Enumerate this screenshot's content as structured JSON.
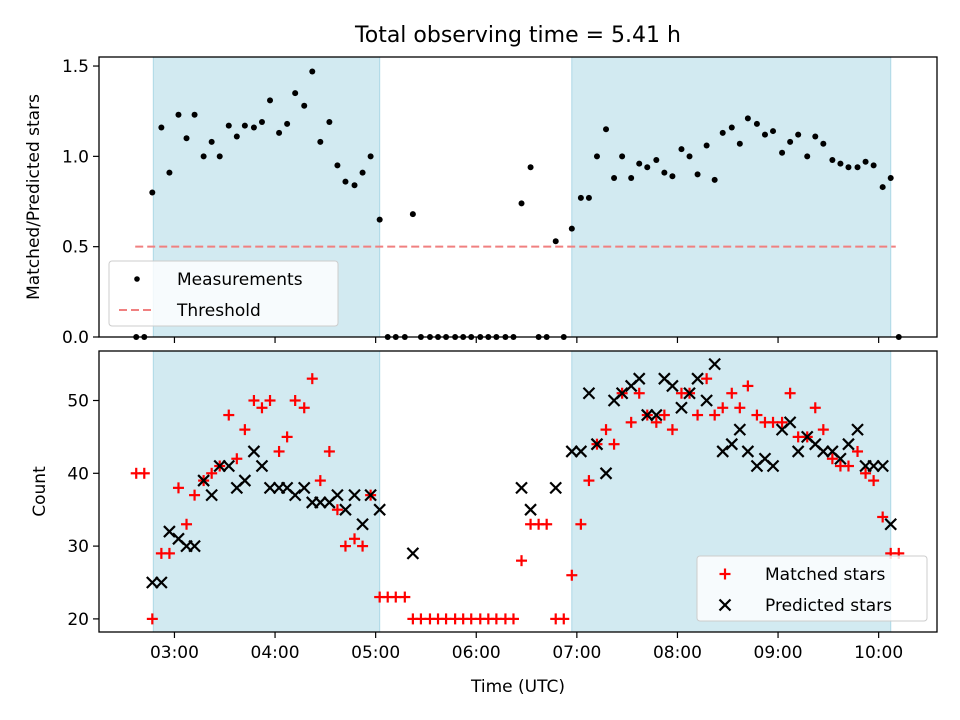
{
  "title": "Total observing time = 5.41 h",
  "chart_data": [
    {
      "type": "scatter",
      "panel": "top",
      "ylabel": "Matched/Predicted stars",
      "xlabel": "",
      "ylim": [
        0,
        1.55
      ],
      "yticks": [
        0.0,
        0.5,
        1.0,
        1.5
      ],
      "ytick_labels": [
        "0.0",
        "0.5",
        "1.0",
        "1.5"
      ],
      "legend": {
        "placement": "lower-left",
        "entries": [
          "Measurements",
          "Threshold"
        ]
      },
      "threshold": {
        "name": "Threshold",
        "value": 0.5,
        "x_start": 2.61,
        "x_end": 10.17,
        "color": "#f08080"
      },
      "series": [
        {
          "name": "Measurements",
          "color": "#000000",
          "points": [
            [
              2.62,
              0.0
            ],
            [
              2.7,
              0.0
            ],
            [
              2.78,
              0.8
            ],
            [
              2.87,
              1.16
            ],
            [
              2.95,
              0.91
            ],
            [
              3.04,
              1.23
            ],
            [
              3.12,
              1.1
            ],
            [
              3.2,
              1.23
            ],
            [
              3.29,
              1.0
            ],
            [
              3.37,
              1.08
            ],
            [
              3.45,
              1.0
            ],
            [
              3.54,
              1.17
            ],
            [
              3.62,
              1.11
            ],
            [
              3.7,
              1.17
            ],
            [
              3.79,
              1.16
            ],
            [
              3.87,
              1.19
            ],
            [
              3.95,
              1.31
            ],
            [
              4.04,
              1.13
            ],
            [
              4.12,
              1.18
            ],
            [
              4.2,
              1.35
            ],
            [
              4.29,
              1.28
            ],
            [
              4.37,
              1.47
            ],
            [
              4.45,
              1.08
            ],
            [
              4.54,
              1.19
            ],
            [
              4.62,
              0.95
            ],
            [
              4.7,
              0.86
            ],
            [
              4.79,
              0.84
            ],
            [
              4.87,
              0.91
            ],
            [
              4.95,
              1.0
            ],
            [
              5.04,
              0.65
            ],
            [
              5.12,
              0.0
            ],
            [
              5.2,
              0.0
            ],
            [
              5.29,
              0.0
            ],
            [
              5.37,
              0.68
            ],
            [
              5.45,
              0.0
            ],
            [
              5.54,
              0.0
            ],
            [
              5.62,
              0.0
            ],
            [
              5.7,
              0.0
            ],
            [
              5.79,
              0.0
            ],
            [
              5.87,
              0.0
            ],
            [
              5.95,
              0.0
            ],
            [
              6.04,
              0.0
            ],
            [
              6.12,
              0.0
            ],
            [
              6.2,
              0.0
            ],
            [
              6.29,
              0.0
            ],
            [
              6.37,
              0.0
            ],
            [
              6.45,
              0.74
            ],
            [
              6.54,
              0.94
            ],
            [
              6.62,
              0.0
            ],
            [
              6.7,
              0.0
            ],
            [
              6.79,
              0.53
            ],
            [
              6.87,
              0.0
            ],
            [
              6.95,
              0.6
            ],
            [
              7.04,
              0.77
            ],
            [
              7.12,
              0.77
            ],
            [
              7.2,
              1.0
            ],
            [
              7.29,
              1.15
            ],
            [
              7.37,
              0.88
            ],
            [
              7.45,
              1.0
            ],
            [
              7.54,
              0.88
            ],
            [
              7.62,
              0.96
            ],
            [
              7.7,
              0.94
            ],
            [
              7.79,
              0.98
            ],
            [
              7.87,
              0.91
            ],
            [
              7.95,
              0.89
            ],
            [
              8.04,
              1.04
            ],
            [
              8.12,
              1.0
            ],
            [
              8.2,
              0.9
            ],
            [
              8.29,
              1.06
            ],
            [
              8.37,
              0.87
            ],
            [
              8.45,
              1.13
            ],
            [
              8.54,
              1.16
            ],
            [
              8.62,
              1.07
            ],
            [
              8.7,
              1.21
            ],
            [
              8.79,
              1.18
            ],
            [
              8.87,
              1.12
            ],
            [
              8.95,
              1.14
            ],
            [
              9.04,
              1.02
            ],
            [
              9.12,
              1.08
            ],
            [
              9.2,
              1.12
            ],
            [
              9.29,
              1.0
            ],
            [
              9.37,
              1.11
            ],
            [
              9.45,
              1.07
            ],
            [
              9.54,
              0.98
            ],
            [
              9.62,
              0.96
            ],
            [
              9.7,
              0.94
            ],
            [
              9.79,
              0.94
            ],
            [
              9.87,
              0.97
            ],
            [
              9.95,
              0.95
            ],
            [
              10.04,
              0.83
            ],
            [
              10.12,
              0.88
            ],
            [
              10.2,
              0.0
            ]
          ]
        }
      ]
    },
    {
      "type": "scatter",
      "panel": "bottom",
      "ylabel": "Count",
      "xlabel": "Time (UTC)",
      "ylim": [
        18.2,
        56.8
      ],
      "yticks": [
        20,
        30,
        40,
        50
      ],
      "ytick_labels": [
        "20",
        "30",
        "40",
        "50"
      ],
      "xlim": [
        2.25,
        10.58
      ],
      "xticks": [
        3,
        4,
        5,
        6,
        7,
        8,
        9,
        10
      ],
      "xtick_labels": [
        "03:00",
        "04:00",
        "05:00",
        "06:00",
        "07:00",
        "08:00",
        "09:00",
        "10:00"
      ],
      "legend": {
        "placement": "lower-right",
        "entries": [
          "Matched stars",
          "Predicted stars"
        ]
      },
      "series": [
        {
          "name": "Matched stars",
          "marker": "plus",
          "color": "#ff0000",
          "points": [
            [
              2.62,
              40
            ],
            [
              2.7,
              40
            ],
            [
              2.78,
              20
            ],
            [
              2.87,
              29
            ],
            [
              2.95,
              29
            ],
            [
              3.04,
              38
            ],
            [
              3.12,
              33
            ],
            [
              3.2,
              37
            ],
            [
              3.29,
              39
            ],
            [
              3.37,
              40
            ],
            [
              3.45,
              41
            ],
            [
              3.54,
              48
            ],
            [
              3.62,
              42
            ],
            [
              3.7,
              46
            ],
            [
              3.79,
              50
            ],
            [
              3.87,
              49
            ],
            [
              3.95,
              50
            ],
            [
              4.04,
              43
            ],
            [
              4.12,
              45
            ],
            [
              4.2,
              50
            ],
            [
              4.29,
              49
            ],
            [
              4.37,
              53
            ],
            [
              4.45,
              39
            ],
            [
              4.54,
              43
            ],
            [
              4.62,
              35
            ],
            [
              4.7,
              30
            ],
            [
              4.79,
              31
            ],
            [
              4.87,
              30
            ],
            [
              4.95,
              37
            ],
            [
              5.04,
              23
            ],
            [
              5.12,
              23
            ],
            [
              5.2,
              23
            ],
            [
              5.29,
              23
            ],
            [
              5.37,
              20
            ],
            [
              5.45,
              20
            ],
            [
              5.54,
              20
            ],
            [
              5.62,
              20
            ],
            [
              5.7,
              20
            ],
            [
              5.79,
              20
            ],
            [
              5.87,
              20
            ],
            [
              5.95,
              20
            ],
            [
              6.04,
              20
            ],
            [
              6.12,
              20
            ],
            [
              6.2,
              20
            ],
            [
              6.29,
              20
            ],
            [
              6.37,
              20
            ],
            [
              6.45,
              28
            ],
            [
              6.54,
              33
            ],
            [
              6.62,
              33
            ],
            [
              6.7,
              33
            ],
            [
              6.79,
              20
            ],
            [
              6.87,
              20
            ],
            [
              6.95,
              26
            ],
            [
              7.04,
              33
            ],
            [
              7.12,
              39
            ],
            [
              7.2,
              44
            ],
            [
              7.29,
              46
            ],
            [
              7.37,
              44
            ],
            [
              7.45,
              51
            ],
            [
              7.54,
              47
            ],
            [
              7.62,
              51
            ],
            [
              7.7,
              48
            ],
            [
              7.79,
              47
            ],
            [
              7.87,
              48
            ],
            [
              7.95,
              46
            ],
            [
              8.04,
              51
            ],
            [
              8.12,
              51
            ],
            [
              8.2,
              48
            ],
            [
              8.29,
              53
            ],
            [
              8.37,
              48
            ],
            [
              8.45,
              49
            ],
            [
              8.54,
              51
            ],
            [
              8.62,
              49
            ],
            [
              8.7,
              52
            ],
            [
              8.79,
              48
            ],
            [
              8.87,
              47
            ],
            [
              8.95,
              47
            ],
            [
              9.04,
              47
            ],
            [
              9.12,
              51
            ],
            [
              9.2,
              45
            ],
            [
              9.29,
              45
            ],
            [
              9.37,
              49
            ],
            [
              9.45,
              46
            ],
            [
              9.54,
              42
            ],
            [
              9.62,
              41
            ],
            [
              9.7,
              41
            ],
            [
              9.79,
              43
            ],
            [
              9.87,
              40
            ],
            [
              9.95,
              39
            ],
            [
              10.04,
              34
            ],
            [
              10.12,
              29
            ],
            [
              10.2,
              29
            ]
          ]
        },
        {
          "name": "Predicted stars",
          "marker": "x",
          "color": "#000000",
          "points": [
            [
              2.78,
              25
            ],
            [
              2.87,
              25
            ],
            [
              2.95,
              32
            ],
            [
              3.04,
              31
            ],
            [
              3.12,
              30
            ],
            [
              3.2,
              30
            ],
            [
              3.29,
              39
            ],
            [
              3.37,
              37
            ],
            [
              3.45,
              41
            ],
            [
              3.54,
              41
            ],
            [
              3.62,
              38
            ],
            [
              3.7,
              39
            ],
            [
              3.79,
              43
            ],
            [
              3.87,
              41
            ],
            [
              3.95,
              38
            ],
            [
              4.04,
              38
            ],
            [
              4.12,
              38
            ],
            [
              4.2,
              37
            ],
            [
              4.29,
              38
            ],
            [
              4.37,
              36
            ],
            [
              4.45,
              36
            ],
            [
              4.54,
              36
            ],
            [
              4.62,
              37
            ],
            [
              4.7,
              35
            ],
            [
              4.79,
              37
            ],
            [
              4.87,
              33
            ],
            [
              4.95,
              37
            ],
            [
              5.04,
              35
            ],
            [
              5.37,
              29
            ],
            [
              6.45,
              38
            ],
            [
              6.54,
              35
            ],
            [
              6.79,
              38
            ],
            [
              6.95,
              43
            ],
            [
              7.04,
              43
            ],
            [
              7.12,
              51
            ],
            [
              7.2,
              44
            ],
            [
              7.29,
              40
            ],
            [
              7.37,
              50
            ],
            [
              7.45,
              51
            ],
            [
              7.54,
              52
            ],
            [
              7.62,
              53
            ],
            [
              7.7,
              48
            ],
            [
              7.79,
              48
            ],
            [
              7.87,
              53
            ],
            [
              7.95,
              52
            ],
            [
              8.04,
              49
            ],
            [
              8.12,
              51
            ],
            [
              8.2,
              53
            ],
            [
              8.29,
              50
            ],
            [
              8.37,
              55
            ],
            [
              8.45,
              43
            ],
            [
              8.54,
              44
            ],
            [
              8.62,
              46
            ],
            [
              8.7,
              43
            ],
            [
              8.79,
              41
            ],
            [
              8.87,
              42
            ],
            [
              8.95,
              41
            ],
            [
              9.04,
              46
            ],
            [
              9.12,
              47
            ],
            [
              9.2,
              43
            ],
            [
              9.29,
              45
            ],
            [
              9.37,
              44
            ],
            [
              9.45,
              43
            ],
            [
              9.54,
              43
            ],
            [
              9.62,
              42
            ],
            [
              9.7,
              44
            ],
            [
              9.79,
              46
            ],
            [
              9.87,
              41
            ],
            [
              9.95,
              41
            ],
            [
              10.04,
              41
            ],
            [
              10.12,
              33
            ]
          ]
        }
      ]
    }
  ],
  "observing_windows": [
    [
      2.79,
      5.04
    ],
    [
      6.95,
      10.12
    ]
  ],
  "colors": {
    "window_fill": "#add8e6",
    "measurement": "#000000",
    "matched": "#ff0000",
    "predicted": "#000000",
    "threshold": "#f08080"
  }
}
